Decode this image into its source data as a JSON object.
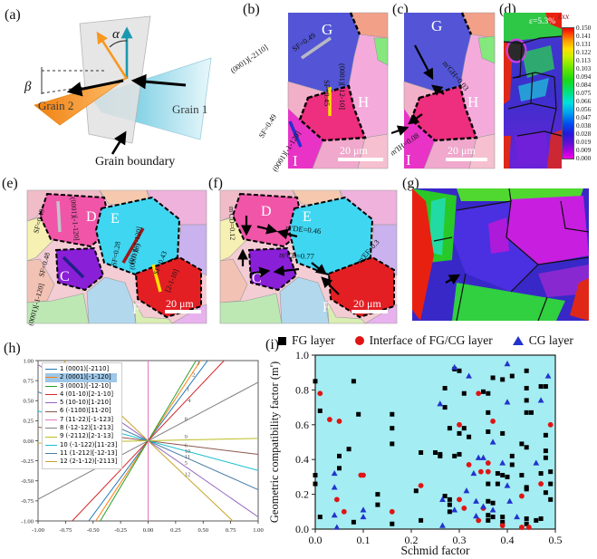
{
  "panels": {
    "a": {
      "label": "(a)",
      "alpha": "α",
      "beta": "β",
      "grain1": "Grain 1",
      "grain2": "Grain 2",
      "grain_boundary": "Grain boundary"
    },
    "b": {
      "label": "(b)",
      "grain_g": "G",
      "grain_h": "H",
      "grain_i": "I",
      "ann_g_sf": "SF=0.49",
      "ann_g_sys": "(0001)[-2110]",
      "ann_h_sf": "SF=0.45",
      "ann_h_sys": "(0001)[-12-10]",
      "ann_i_sf": "SF=0.49",
      "ann_i_sys": "(0001)[-1-120]",
      "scale_bar": "20 μm"
    },
    "c": {
      "label": "(c)",
      "grain_g": "G",
      "grain_h": "H",
      "grain_i": "I",
      "ann_gh": "m'GH=0.03",
      "ann_ih": "m'IH=0.08",
      "scale_bar": "20 μm"
    },
    "d": {
      "label": "(d)",
      "strain": "ε=5.3%",
      "colorbar_title": "εxx",
      "colorbar_ticks": [
        "0.150",
        "0.141",
        "0.131",
        "0.122",
        "0.113",
        "0.103",
        "0.094",
        "0.084",
        "0.075",
        "0.066",
        "0.056",
        "0.047",
        "0.038",
        "0.028",
        "0.019",
        "0.009",
        "0.000"
      ]
    },
    "e": {
      "label": "(e)",
      "grain_c": "C",
      "grain_d": "D",
      "grain_e": "E",
      "grain_f": "F",
      "ann_d_sf": "SF=0.49",
      "ann_d_sys": "(0001)[-1-120]",
      "ann_c_sf": "SF=0.48",
      "ann_c_sys": "(0001)[-1-120]",
      "ann_e_sf": "SF=0.28",
      "ann_e_sys": "(0001)[-1-120]",
      "ann_f_sf": "SF=0.43",
      "ann_f_plane": "(01-10)",
      "ann_f_dir": "[2-1-10]",
      "scale_bar": "20 μm"
    },
    "f": {
      "label": "(f)",
      "grain_c": "C",
      "grain_d": "D",
      "grain_e": "E",
      "grain_f": "F",
      "ann_cd": "m'CD=0.12",
      "ann_de": "m'DE=0.46",
      "ann_ce": "m'CE=0.77",
      "ann_ef": "m'EF=0.3",
      "scale_bar": "20 μm"
    },
    "g": {
      "label": "(g)"
    },
    "h": {
      "label": "(h)"
    },
    "i": {
      "label": "(i)"
    }
  },
  "chart_data": [
    {
      "type": "line",
      "panel": "h",
      "title": "",
      "xlabel": "",
      "ylabel": "",
      "xlim": [
        -1.0,
        1.0
      ],
      "ylim": [
        -1.0,
        1.0
      ],
      "xticks": [
        "-1.00",
        "-0.75",
        "-0.50",
        "-0.25",
        "0.00",
        "0.25",
        "0.50",
        "0.75",
        "1.00"
      ],
      "yticks": [
        "1.00",
        "0.75",
        "0.50",
        "0.25",
        "0.00",
        "-0.25",
        "-0.50",
        "-0.75",
        "-1.00"
      ],
      "legend_position": "upper left",
      "note": "12 slip-trace lines all passing through the origin",
      "series": [
        {
          "id": "1",
          "label": "1 (0001)[-2110]",
          "color": "#1f77b4",
          "slope": 1.85,
          "label_xy": [
            0.35,
            0.62
          ]
        },
        {
          "id": "2",
          "label": "2 (0001)[-1-120]",
          "color": "#ff7f0e",
          "slope": 2.1,
          "highlighted": true,
          "label_xy": [
            0.4,
            0.8
          ]
        },
        {
          "id": "3",
          "label": "3 (0001)[-12-10]",
          "color": "#2ca02c",
          "slope": 2.3,
          "label_xy": [
            0.44,
            0.95
          ]
        },
        {
          "id": "4",
          "label": "4 (01-10)[2-1-10]",
          "color": "#d62728",
          "slope": 1.45,
          "label_xy": [
            0.36,
            0.48
          ]
        },
        {
          "id": "5",
          "label": "5 (10-10)[1-210]",
          "color": "#9467bd",
          "slope": -0.95,
          "label_xy": [
            0.33,
            -0.3
          ]
        },
        {
          "id": "6",
          "label": "6 (-1100)[11-20]",
          "color": "#8c564b",
          "slope": -0.17,
          "label_xy": [
            0.33,
            -0.08
          ]
        },
        {
          "id": "7",
          "label": "7 (11-22)[-1-123]",
          "color": "#e377c2",
          "vertical": true,
          "slope": null,
          "label_xy": null
        },
        {
          "id": "8",
          "label": "8 (-12-12)[1-213]",
          "color": "#7f7f7f",
          "slope": 0.73,
          "label_xy": [
            0.33,
            0.25
          ]
        },
        {
          "id": "9",
          "label": "9 (-2112)[2-1-13]",
          "color": "#bcbd22",
          "slope": 0.03,
          "label_xy": [
            0.33,
            0.03
          ]
        },
        {
          "id": "10",
          "label": "10 (-1-122)[11-23]",
          "color": "#17becf",
          "slope": -0.37,
          "label_xy": [
            0.33,
            -0.15
          ]
        },
        {
          "id": "11",
          "label": "11 (1-212)[-12-13]",
          "color": "#4a7ba6",
          "slope": -0.61,
          "label_xy": [
            0.33,
            -0.22
          ]
        },
        {
          "id": "12",
          "label": "12 (2-1-12)[-2113]",
          "color": "#c9a227",
          "slope": -1.3,
          "label_xy": [
            0.33,
            -0.44
          ]
        }
      ]
    },
    {
      "type": "scatter",
      "panel": "i",
      "xlabel": "Schmid factor",
      "ylabel": "Geometric compatibility factor (m')",
      "xlim": [
        0.0,
        0.5
      ],
      "ylim": [
        0.0,
        1.0
      ],
      "xticks": [
        "0.0",
        "0.1",
        "0.2",
        "0.3",
        "0.4",
        "0.5"
      ],
      "yticks": [
        "0.0",
        "0.2",
        "0.4",
        "0.6",
        "0.8",
        "1.0"
      ],
      "background": "#a4edf2",
      "legend_position": "top",
      "series": [
        {
          "name": "FG layer",
          "marker": "square",
          "color": "#000000",
          "points": [
            [
              0.0,
              0.85
            ],
            [
              0.01,
              0.68
            ],
            [
              0.0,
              0.31
            ],
            [
              0.0,
              0.26
            ],
            [
              0.01,
              0.07
            ],
            [
              0.05,
              0.42
            ],
            [
              0.05,
              0.35
            ],
            [
              0.08,
              0.85
            ],
            [
              0.09,
              0.66
            ],
            [
              0.07,
              0.46
            ],
            [
              0.08,
              0.04
            ],
            [
              0.13,
              0.2
            ],
            [
              0.13,
              0.14
            ],
            [
              0.16,
              0.66
            ],
            [
              0.16,
              0.58
            ],
            [
              0.16,
              0.49
            ],
            [
              0.16,
              0.03
            ],
            [
              0.21,
              0.22
            ],
            [
              0.22,
              0.44
            ],
            [
              0.22,
              0.05
            ],
            [
              0.25,
              0.44
            ],
            [
              0.26,
              0.42
            ],
            [
              0.26,
              0.43
            ],
            [
              0.27,
              0.81
            ],
            [
              0.27,
              0.7
            ],
            [
              0.28,
              0.58
            ],
            [
              0.29,
              0.92
            ],
            [
              0.27,
              0.19
            ],
            [
              0.28,
              0.17
            ],
            [
              0.28,
              0.14
            ],
            [
              0.28,
              0.1
            ],
            [
              0.29,
              0.42
            ],
            [
              0.3,
              0.91
            ],
            [
              0.3,
              0.55
            ],
            [
              0.3,
              0.43
            ],
            [
              0.31,
              0.78
            ],
            [
              0.31,
              0.58
            ],
            [
              0.32,
              0.53
            ],
            [
              0.35,
              0.79
            ],
            [
              0.36,
              0.78
            ],
            [
              0.36,
              0.67
            ],
            [
              0.36,
              0.56
            ],
            [
              0.36,
              0.26
            ],
            [
              0.38,
              0.26
            ],
            [
              0.36,
              0.16
            ],
            [
              0.37,
              0.15
            ],
            [
              0.36,
              0.08
            ],
            [
              0.37,
              0.07
            ],
            [
              0.36,
              0.05
            ],
            [
              0.37,
              0.87
            ],
            [
              0.39,
              0.86
            ],
            [
              0.38,
              0.32
            ],
            [
              0.39,
              0.31
            ],
            [
              0.4,
              0.3
            ],
            [
              0.39,
              0.55
            ],
            [
              0.39,
              0.07
            ],
            [
              0.39,
              0.04
            ],
            [
              0.41,
              0.88
            ],
            [
              0.41,
              0.42
            ],
            [
              0.41,
              0.37
            ],
            [
              0.43,
              0.49
            ],
            [
              0.43,
              0.31
            ],
            [
              0.44,
              0.91
            ],
            [
              0.44,
              0.81
            ],
            [
              0.44,
              0.74
            ],
            [
              0.44,
              0.67
            ],
            [
              0.45,
              0.67
            ],
            [
              0.44,
              0.47
            ],
            [
              0.44,
              0.24
            ],
            [
              0.44,
              0.23
            ],
            [
              0.44,
              0.06
            ],
            [
              0.44,
              0.03
            ],
            [
              0.46,
              0.05
            ],
            [
              0.47,
              0.06
            ],
            [
              0.47,
              0.32
            ],
            [
              0.47,
              0.82
            ],
            [
              0.48,
              0.82
            ],
            [
              0.48,
              0.54
            ],
            [
              0.48,
              0.45
            ],
            [
              0.48,
              0.41
            ],
            [
              0.48,
              0.21
            ],
            [
              0.49,
              0.33
            ],
            [
              0.49,
              0.26
            ],
            [
              0.49,
              0.17
            ]
          ]
        },
        {
          "name": "Interface of FG/CG layer",
          "marker": "circle",
          "color": "#e01414",
          "points": [
            [
              0.01,
              0.78
            ],
            [
              0.03,
              0.63
            ],
            [
              0.05,
              0.62
            ],
            [
              0.045,
              0.17
            ],
            [
              0.06,
              0.1
            ],
            [
              0.095,
              0.31
            ],
            [
              0.1,
              0.31
            ],
            [
              0.16,
              0.1
            ],
            [
              0.22,
              0.25
            ],
            [
              0.3,
              0.6
            ],
            [
              0.3,
              0.17
            ],
            [
              0.31,
              0.12
            ],
            [
              0.32,
              0.37
            ],
            [
              0.34,
              0.78
            ],
            [
              0.345,
              0.33
            ],
            [
              0.36,
              0.33
            ],
            [
              0.36,
              0.38
            ],
            [
              0.37,
              0.62
            ],
            [
              0.35,
              0.12
            ],
            [
              0.34,
              0.05
            ],
            [
              0.39,
              0.02
            ],
            [
              0.43,
              0.01
            ],
            [
              0.445,
              0.01
            ],
            [
              0.43,
              0.19
            ],
            [
              0.47,
              0.26
            ],
            [
              0.49,
              0.6
            ]
          ]
        },
        {
          "name": "CG layer",
          "marker": "triangle",
          "color": "#2233cc",
          "points": [
            [
              0.04,
              0.32
            ],
            [
              0.04,
              0.24
            ],
            [
              0.04,
              0.08
            ],
            [
              0.045,
              0.01
            ],
            [
              0.1,
              0.11
            ],
            [
              0.1,
              0.07
            ],
            [
              0.26,
              0.72
            ],
            [
              0.265,
              0.17
            ],
            [
              0.265,
              0.02
            ],
            [
              0.29,
              0.93
            ],
            [
              0.29,
              0.11
            ],
            [
              0.315,
              0.22
            ],
            [
              0.32,
              0.88
            ],
            [
              0.33,
              0.32
            ],
            [
              0.335,
              0.16
            ],
            [
              0.335,
              0.075
            ],
            [
              0.34,
              0.41
            ],
            [
              0.35,
              0.41
            ],
            [
              0.35,
              0.13
            ],
            [
              0.37,
              0.11
            ],
            [
              0.37,
              0.5
            ],
            [
              0.39,
              0.38
            ],
            [
              0.4,
              0.95
            ],
            [
              0.4,
              0.73
            ],
            [
              0.4,
              0.25
            ],
            [
              0.405,
              0.16
            ],
            [
              0.42,
              0.07
            ],
            [
              0.46,
              0.38
            ],
            [
              0.47,
              0.74
            ],
            [
              0.485,
              0.88
            ]
          ]
        }
      ]
    }
  ]
}
